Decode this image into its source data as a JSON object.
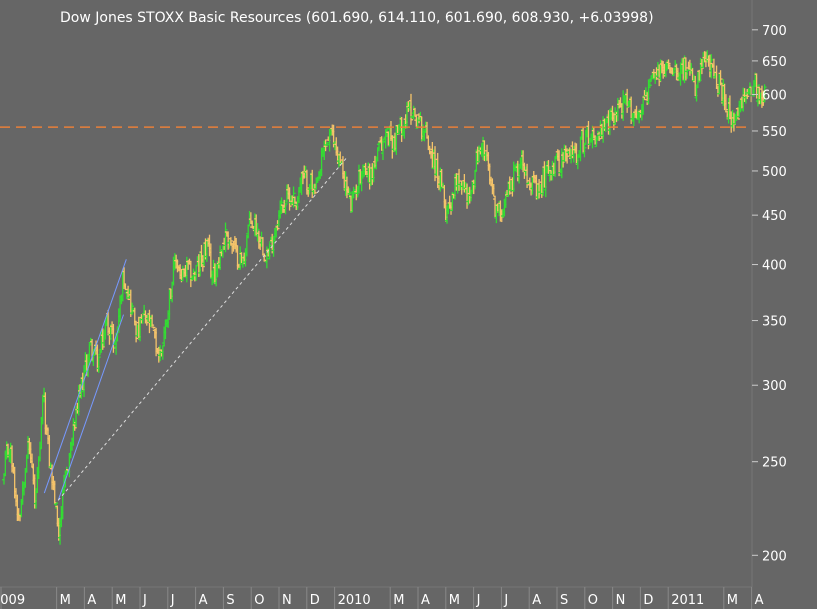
{
  "chart_title": "Dow Jones STOXX Basic Resources (601.690, 614.110, 601.690, 608.930, +6.03998)",
  "colors": {
    "background": "#666666",
    "up_bar": "#33dd33",
    "down_bar": "#f5c46a",
    "reference_line": "#e8803a",
    "channel_line": "#7799ff",
    "support_line": "#dddddd",
    "text": "#ffffff"
  },
  "chart_data": {
    "type": "ohlc",
    "title": "Dow Jones STOXX Basic Resources (601.690, 614.110, 601.690, 608.930, +6.03998)",
    "last_bar": {
      "open": 601.69,
      "high": 614.11,
      "low": 601.69,
      "close": 608.93,
      "change": 6.03998
    },
    "y_scale": "log",
    "ylim": [
      185,
      720
    ],
    "y_ticks": [
      200,
      250,
      300,
      350,
      400,
      450,
      500,
      550,
      600,
      650,
      700
    ],
    "x_ticks": [
      {
        "label": "2009",
        "t": 0.0
      },
      {
        "label": "M",
        "t": 2.0
      },
      {
        "label": "A",
        "t": 3.0
      },
      {
        "label": "M",
        "t": 4.0
      },
      {
        "label": "J",
        "t": 5.0
      },
      {
        "label": "J",
        "t": 6.0
      },
      {
        "label": "A",
        "t": 7.0
      },
      {
        "label": "S",
        "t": 8.0
      },
      {
        "label": "O",
        "t": 9.0
      },
      {
        "label": "N",
        "t": 10.0
      },
      {
        "label": "D",
        "t": 11.0
      },
      {
        "label": "2010",
        "t": 12.0
      },
      {
        "label": "M",
        "t": 14.0
      },
      {
        "label": "A",
        "t": 15.0
      },
      {
        "label": "M",
        "t": 16.0
      },
      {
        "label": "J",
        "t": 17.0
      },
      {
        "label": "J",
        "t": 18.0
      },
      {
        "label": "A",
        "t": 19.0
      },
      {
        "label": "S",
        "t": 20.0
      },
      {
        "label": "O",
        "t": 21.0
      },
      {
        "label": "N",
        "t": 22.0
      },
      {
        "label": "D",
        "t": 23.0
      },
      {
        "label": "2011",
        "t": 24.0
      },
      {
        "label": "M",
        "t": 26.0
      },
      {
        "label": "A",
        "t": 27.0
      }
    ],
    "reference_level": 555,
    "price_path": [
      [
        1.1,
        225
      ],
      [
        1.3,
        255
      ],
      [
        1.4,
        295
      ],
      [
        1.6,
        255
      ],
      [
        1.8,
        232
      ],
      [
        1.95,
        212
      ],
      [
        2.2,
        238
      ],
      [
        2.5,
        270
      ],
      [
        2.8,
        300
      ],
      [
        3.1,
        330
      ],
      [
        3.4,
        318
      ],
      [
        3.7,
        350
      ],
      [
        4.0,
        330
      ],
      [
        4.3,
        392
      ],
      [
        4.5,
        372
      ],
      [
        4.8,
        338
      ],
      [
        5.0,
        352
      ],
      [
        5.3,
        345
      ],
      [
        5.6,
        320
      ],
      [
        5.8,
        345
      ],
      [
        6.0,
        380
      ],
      [
        6.2,
        405
      ],
      [
        6.4,
        385
      ],
      [
        6.6,
        395
      ],
      [
        6.8,
        390
      ],
      [
        7.0,
        398
      ],
      [
        7.3,
        418
      ],
      [
        7.5,
        388
      ],
      [
        7.8,
        412
      ],
      [
        8.0,
        432
      ],
      [
        8.3,
        412
      ],
      [
        8.6,
        402
      ],
      [
        8.8,
        440
      ],
      [
        9.0,
        442
      ],
      [
        9.3,
        420
      ],
      [
        9.5,
        408
      ],
      [
        9.8,
        442
      ],
      [
        10.0,
        462
      ],
      [
        10.3,
        472
      ],
      [
        10.5,
        465
      ],
      [
        10.7,
        490
      ],
      [
        11.0,
        488
      ],
      [
        11.2,
        470
      ],
      [
        11.5,
        525
      ],
      [
        11.7,
        545
      ],
      [
        11.9,
        535
      ],
      [
        12.2,
        495
      ],
      [
        12.5,
        458
      ],
      [
        12.7,
        485
      ],
      [
        12.9,
        505
      ],
      [
        13.2,
        495
      ],
      [
        13.5,
        525
      ],
      [
        13.8,
        548
      ],
      [
        14.0,
        535
      ],
      [
        14.3,
        558
      ],
      [
        14.6,
        580
      ],
      [
        14.8,
        572
      ],
      [
        15.0,
        558
      ],
      [
        15.2,
        545
      ],
      [
        15.5,
        505
      ],
      [
        15.7,
        485
      ],
      [
        15.9,
        455
      ],
      [
        16.1,
        468
      ],
      [
        16.3,
        498
      ],
      [
        16.5,
        482
      ],
      [
        16.8,
        468
      ],
      [
        17.0,
        512
      ],
      [
        17.2,
        535
      ],
      [
        17.4,
        505
      ],
      [
        17.6,
        465
      ],
      [
        17.8,
        450
      ],
      [
        18.0,
        468
      ],
      [
        18.3,
        492
      ],
      [
        18.6,
        515
      ],
      [
        18.8,
        502
      ],
      [
        19.0,
        485
      ],
      [
        19.2,
        470
      ],
      [
        19.4,
        490
      ],
      [
        19.6,
        505
      ],
      [
        19.8,
        508
      ],
      [
        20.0,
        512
      ],
      [
        20.3,
        518
      ],
      [
        20.6,
        525
      ],
      [
        20.9,
        540
      ],
      [
        21.1,
        548
      ],
      [
        21.3,
        542
      ],
      [
        21.6,
        552
      ],
      [
        21.9,
        570
      ],
      [
        22.2,
        588
      ],
      [
        22.5,
        580
      ],
      [
        22.8,
        570
      ],
      [
        23.0,
        592
      ],
      [
        23.3,
        618
      ],
      [
        23.6,
        632
      ],
      [
        23.9,
        642
      ],
      [
        24.1,
        645
      ],
      [
        24.3,
        640
      ],
      [
        24.5,
        638
      ],
      [
        24.7,
        625
      ],
      [
        24.9,
        608
      ],
      [
        25.1,
        640
      ],
      [
        25.3,
        650
      ],
      [
        25.5,
        632
      ],
      [
        25.7,
        615
      ],
      [
        25.9,
        598
      ],
      [
        26.1,
        572
      ],
      [
        26.25,
        555
      ],
      [
        26.4,
        570
      ],
      [
        26.6,
        590
      ],
      [
        26.8,
        610
      ],
      [
        27.0,
        618
      ],
      [
        27.2,
        596
      ],
      [
        27.4,
        608.93
      ]
    ],
    "channel_lines": [
      [
        [
          1.45,
          232
        ],
        [
          4.4,
          405
        ]
      ],
      [
        [
          1.95,
          228
        ],
        [
          4.3,
          355
        ]
      ]
    ],
    "support_line": [
      [
        1.95,
        228
      ],
      [
        12.3,
        515
      ]
    ]
  }
}
